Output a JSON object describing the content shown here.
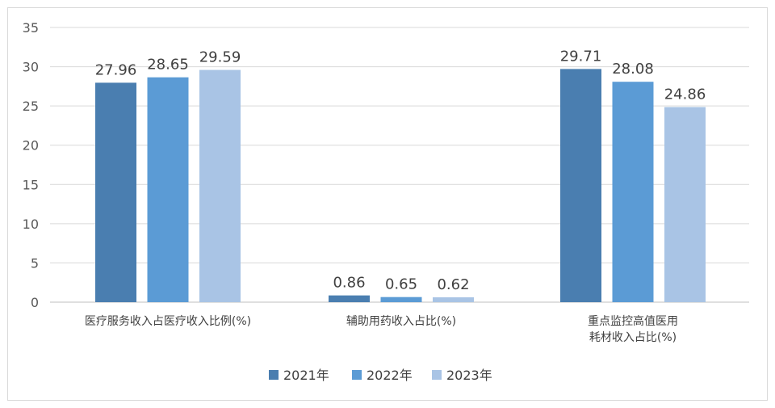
{
  "chart_data": {
    "type": "bar",
    "categories": [
      [
        "医疗服务收入占医疗收入比例(%)"
      ],
      [
        "辅助用药收入占比(%)"
      ],
      [
        "重点监控高值医用",
        "耗材收入占比(%)"
      ]
    ],
    "series": [
      {
        "name": "2021年",
        "color": "#4a7eb0",
        "values": [
          27.96,
          0.86,
          29.71
        ],
        "labels": [
          "27.96",
          "0.86",
          "29.71"
        ]
      },
      {
        "name": "2022年",
        "color": "#5b9bd5",
        "values": [
          28.65,
          0.65,
          28.08
        ],
        "labels": [
          "28.65",
          "0.65",
          "28.08"
        ]
      },
      {
        "name": "2023年",
        "color": "#a9c4e5",
        "values": [
          29.59,
          0.62,
          24.86
        ],
        "labels": [
          "29.59",
          "0.62",
          "24.86"
        ]
      }
    ],
    "yticks": [
      "0",
      "5",
      "10",
      "15",
      "20",
      "25",
      "30",
      "35"
    ],
    "ylim": [
      0,
      35
    ],
    "grid": true,
    "legend_position": "bottom",
    "title": "",
    "xlabel": "",
    "ylabel": ""
  },
  "colors": {
    "gridline": "#d9d9d9",
    "axis": "#bfbfbf"
  }
}
